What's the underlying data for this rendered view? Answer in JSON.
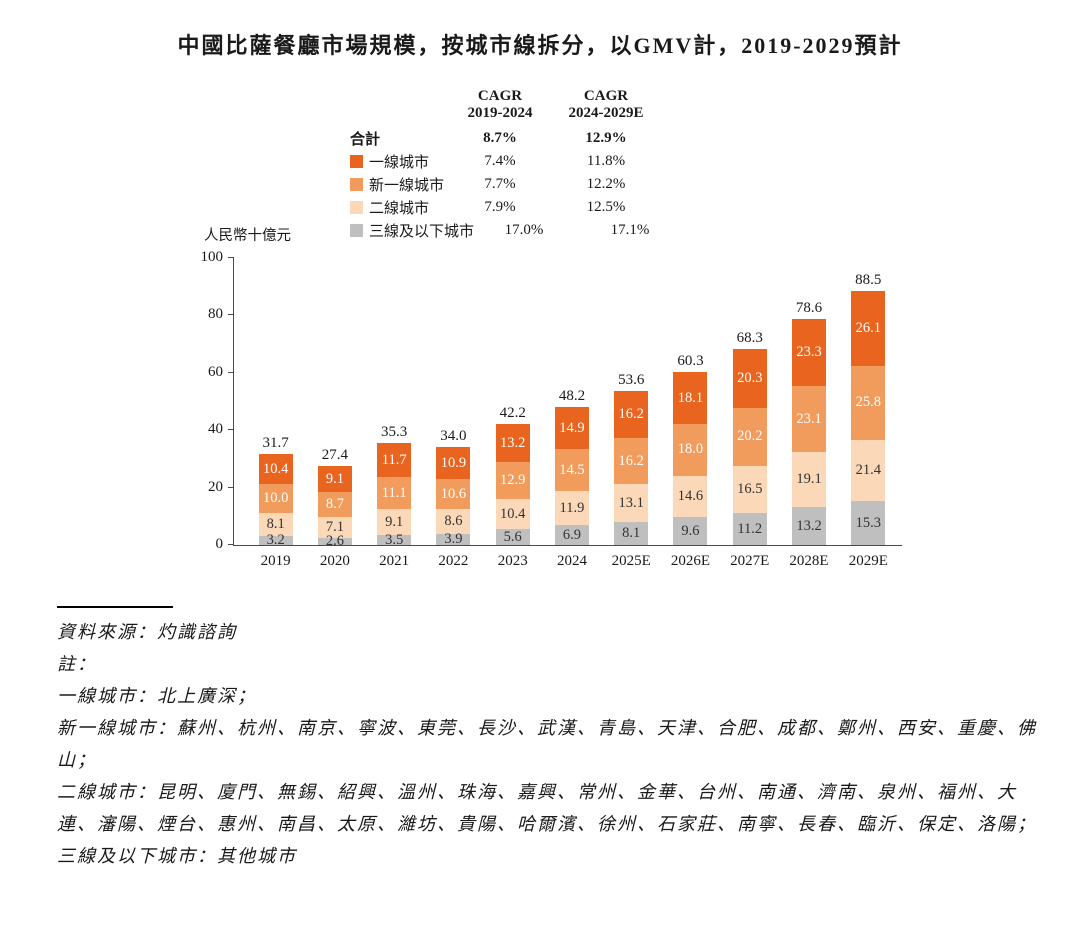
{
  "title": "中國比薩餐廳市場規模，按城市線拆分，以GMV計，2019-2029預計",
  "legend": {
    "col1_header": "CAGR\n2019-2024",
    "col2_header": "CAGR\n2024-2029E",
    "total_row": {
      "label": "合計",
      "cagr1": "8.7%",
      "cagr2": "12.9%"
    },
    "items": [
      {
        "label": "一線城市",
        "color": "#E8641F",
        "cagr1": "7.4%",
        "cagr2": "11.8%"
      },
      {
        "label": "新一線城市",
        "color": "#F19B5C",
        "cagr1": "7.7%",
        "cagr2": "12.2%"
      },
      {
        "label": "二線城市",
        "color": "#FAD8B8",
        "cagr1": "7.9%",
        "cagr2": "12.5%"
      },
      {
        "label": "三線及以下城市",
        "color": "#BFBFBF",
        "cagr1": "17.0%",
        "cagr2": "17.1%"
      }
    ]
  },
  "chart_data": {
    "type": "bar",
    "stacked": true,
    "stack_order": "bottom-to-top",
    "title": "中國比薩餐廳市場規模，按城市線拆分，以GMV計，2019-2029預計",
    "ylabel": "人民幣十億元",
    "xlabel": "",
    "ylim": [
      0,
      100
    ],
    "yticks": [
      0,
      20,
      40,
      60,
      80,
      100
    ],
    "grid": false,
    "legend_position": "top",
    "categories": [
      "2019",
      "2020",
      "2021",
      "2022",
      "2023",
      "2024",
      "2025E",
      "2026E",
      "2027E",
      "2028E",
      "2029E"
    ],
    "series": [
      {
        "name": "三線及以下城市",
        "color": "#BFBFBF",
        "label_color": "#333333",
        "values": [
          3.2,
          2.6,
          3.5,
          3.9,
          5.6,
          6.9,
          8.1,
          9.6,
          11.2,
          13.2,
          15.3
        ]
      },
      {
        "name": "二線城市",
        "color": "#FAD8B8",
        "label_color": "#333333",
        "values": [
          8.1,
          7.1,
          9.1,
          8.6,
          10.4,
          11.9,
          13.1,
          14.6,
          16.5,
          19.1,
          21.4
        ]
      },
      {
        "name": "新一線城市",
        "color": "#F19B5C",
        "label_color": "#ffffff",
        "values": [
          10.0,
          8.7,
          11.1,
          10.6,
          12.9,
          14.5,
          16.2,
          18.0,
          20.2,
          23.1,
          25.8
        ]
      },
      {
        "name": "一線城市",
        "color": "#E8641F",
        "label_color": "#ffffff",
        "values": [
          10.4,
          9.1,
          11.7,
          10.9,
          13.2,
          14.9,
          16.2,
          18.1,
          20.3,
          23.3,
          26.1
        ]
      }
    ],
    "totals": [
      31.7,
      27.4,
      35.3,
      34.0,
      42.2,
      48.2,
      53.6,
      60.3,
      68.3,
      78.6,
      88.5
    ]
  },
  "notes": {
    "source": "資料來源：灼識諮詢",
    "note_label": "註：",
    "lines": [
      "一線城市：北上廣深；",
      "新一線城市：蘇州、杭州、南京、寧波、東莞、長沙、武漢、青島、天津、合肥、成都、鄭州、西安、重慶、佛山；",
      "二線城市：昆明、廈門、無錫、紹興、溫州、珠海、嘉興、常州、金華、台州、南通、濟南、泉州、福州、大連、瀋陽、煙台、惠州、南昌、太原、濰坊、貴陽、哈爾濱、徐州、石家莊、南寧、長春、臨沂、保定、洛陽；",
      "三線及以下城市：其他城市"
    ]
  }
}
